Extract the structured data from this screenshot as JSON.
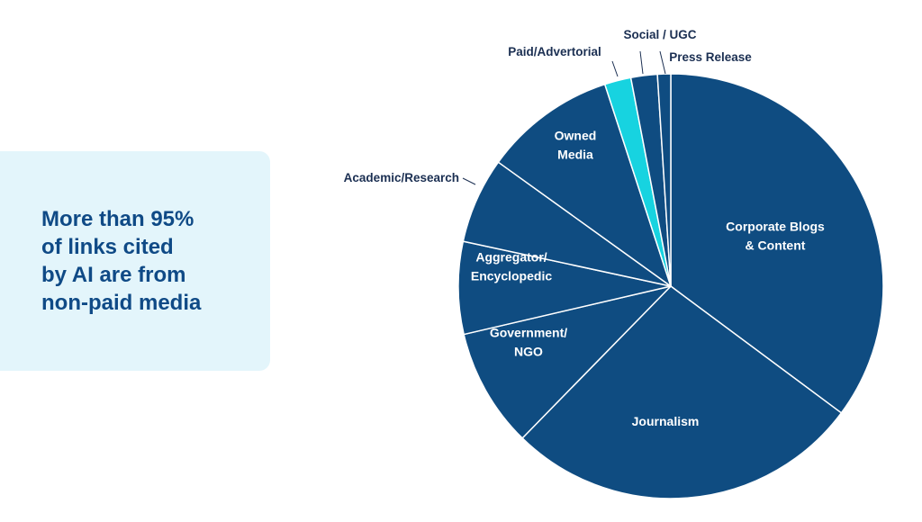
{
  "callout": {
    "lines": [
      "More than 95%",
      "of links cited",
      "by AI are from",
      "non-paid media"
    ],
    "background": "#e3f5fb",
    "text_color": "#0f4a86"
  },
  "chart_data": {
    "type": "pie",
    "start_angle_deg": 0,
    "direction": "clockwise",
    "slice_border": "#ffffff",
    "slices": [
      {
        "label": "Corporate Blogs & Content",
        "lines": [
          "Corporate Blogs",
          "& Content"
        ],
        "value": 35,
        "color": "#0f4c81",
        "label_pos": "inside"
      },
      {
        "label": "Journalism",
        "lines": [
          "Journalism"
        ],
        "value": 27,
        "color": "#0f4c81",
        "label_pos": "inside"
      },
      {
        "label": "Government/ NGO",
        "lines": [
          "Government/",
          "NGO"
        ],
        "value": 9,
        "color": "#0f4c81",
        "label_pos": "inside"
      },
      {
        "label": "Aggregator/ Encyclopedic",
        "lines": [
          "Aggregator/",
          "Encyclopedic"
        ],
        "value": 7,
        "color": "#0f4c81",
        "label_pos": "inside"
      },
      {
        "label": "Academic/Research",
        "lines": [
          "Academic/Research"
        ],
        "value": 6.5,
        "color": "#0f4c81",
        "label_pos": "outside"
      },
      {
        "label": "Owned Media",
        "lines": [
          "Owned",
          "Media"
        ],
        "value": 10,
        "color": "#0f4c81",
        "label_pos": "inside"
      },
      {
        "label": "Paid/Advertorial",
        "lines": [
          "Paid/Advertorial"
        ],
        "value": 2,
        "color": "#17d3e0",
        "label_pos": "outside"
      },
      {
        "label": "Social / UGC",
        "lines": [
          "Social / UGC"
        ],
        "value": 2,
        "color": "#0f4c81",
        "label_pos": "outside"
      },
      {
        "label": "Press Release",
        "lines": [
          "Press Release"
        ],
        "value": 1,
        "color": "#0f4c81",
        "label_pos": "outside"
      }
    ]
  }
}
